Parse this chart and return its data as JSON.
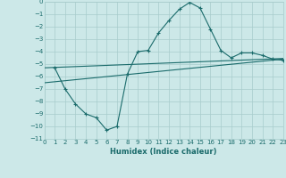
{
  "xlabel": "Humidex (Indice chaleur)",
  "background_color": "#cce8e8",
  "grid_color": "#a8cccc",
  "line_color": "#1a6b6b",
  "xlim": [
    0,
    23
  ],
  "ylim": [
    -11,
    0
  ],
  "xticks": [
    0,
    1,
    2,
    3,
    4,
    5,
    6,
    7,
    8,
    9,
    10,
    11,
    12,
    13,
    14,
    15,
    16,
    17,
    18,
    19,
    20,
    21,
    22,
    23
  ],
  "yticks": [
    0,
    -1,
    -2,
    -3,
    -4,
    -5,
    -6,
    -7,
    -8,
    -9,
    -10,
    -11
  ],
  "curve_x": [
    1,
    2,
    3,
    4,
    5,
    6,
    7,
    8,
    9,
    10,
    11,
    12,
    13,
    14,
    15,
    16,
    17,
    18,
    19,
    20,
    21,
    22,
    23
  ],
  "curve_y": [
    -5.3,
    -7.0,
    -8.2,
    -9.0,
    -9.3,
    -10.3,
    -10.0,
    -5.8,
    -4.0,
    -3.9,
    -2.5,
    -1.5,
    -0.6,
    -0.05,
    -0.5,
    -2.2,
    -3.9,
    -4.5,
    -4.1,
    -4.1,
    -4.3,
    -4.6,
    -4.7
  ],
  "line1_x": [
    0,
    23
  ],
  "line1_y": [
    -5.3,
    -4.55
  ],
  "line2_x": [
    0,
    23
  ],
  "line2_y": [
    -6.5,
    -4.6
  ],
  "tick_fontsize": 5.0,
  "xlabel_fontsize": 6.0
}
